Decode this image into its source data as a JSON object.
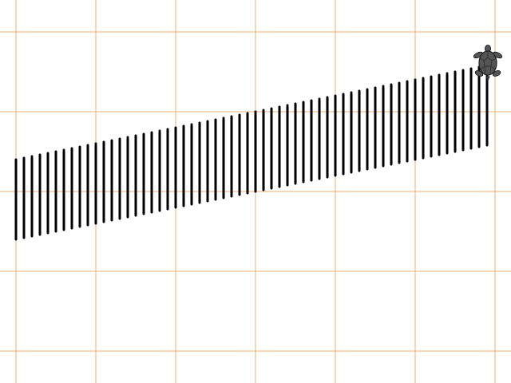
{
  "canvas": {
    "background": "#ffffff",
    "grid_color": "#e8b070",
    "pen_color": "#000000"
  },
  "drawing": {
    "stroke_count": 60
  },
  "turtle": {
    "icon": "turtle-icon",
    "shell_color": "#555555",
    "outline_color": "#222222"
  }
}
